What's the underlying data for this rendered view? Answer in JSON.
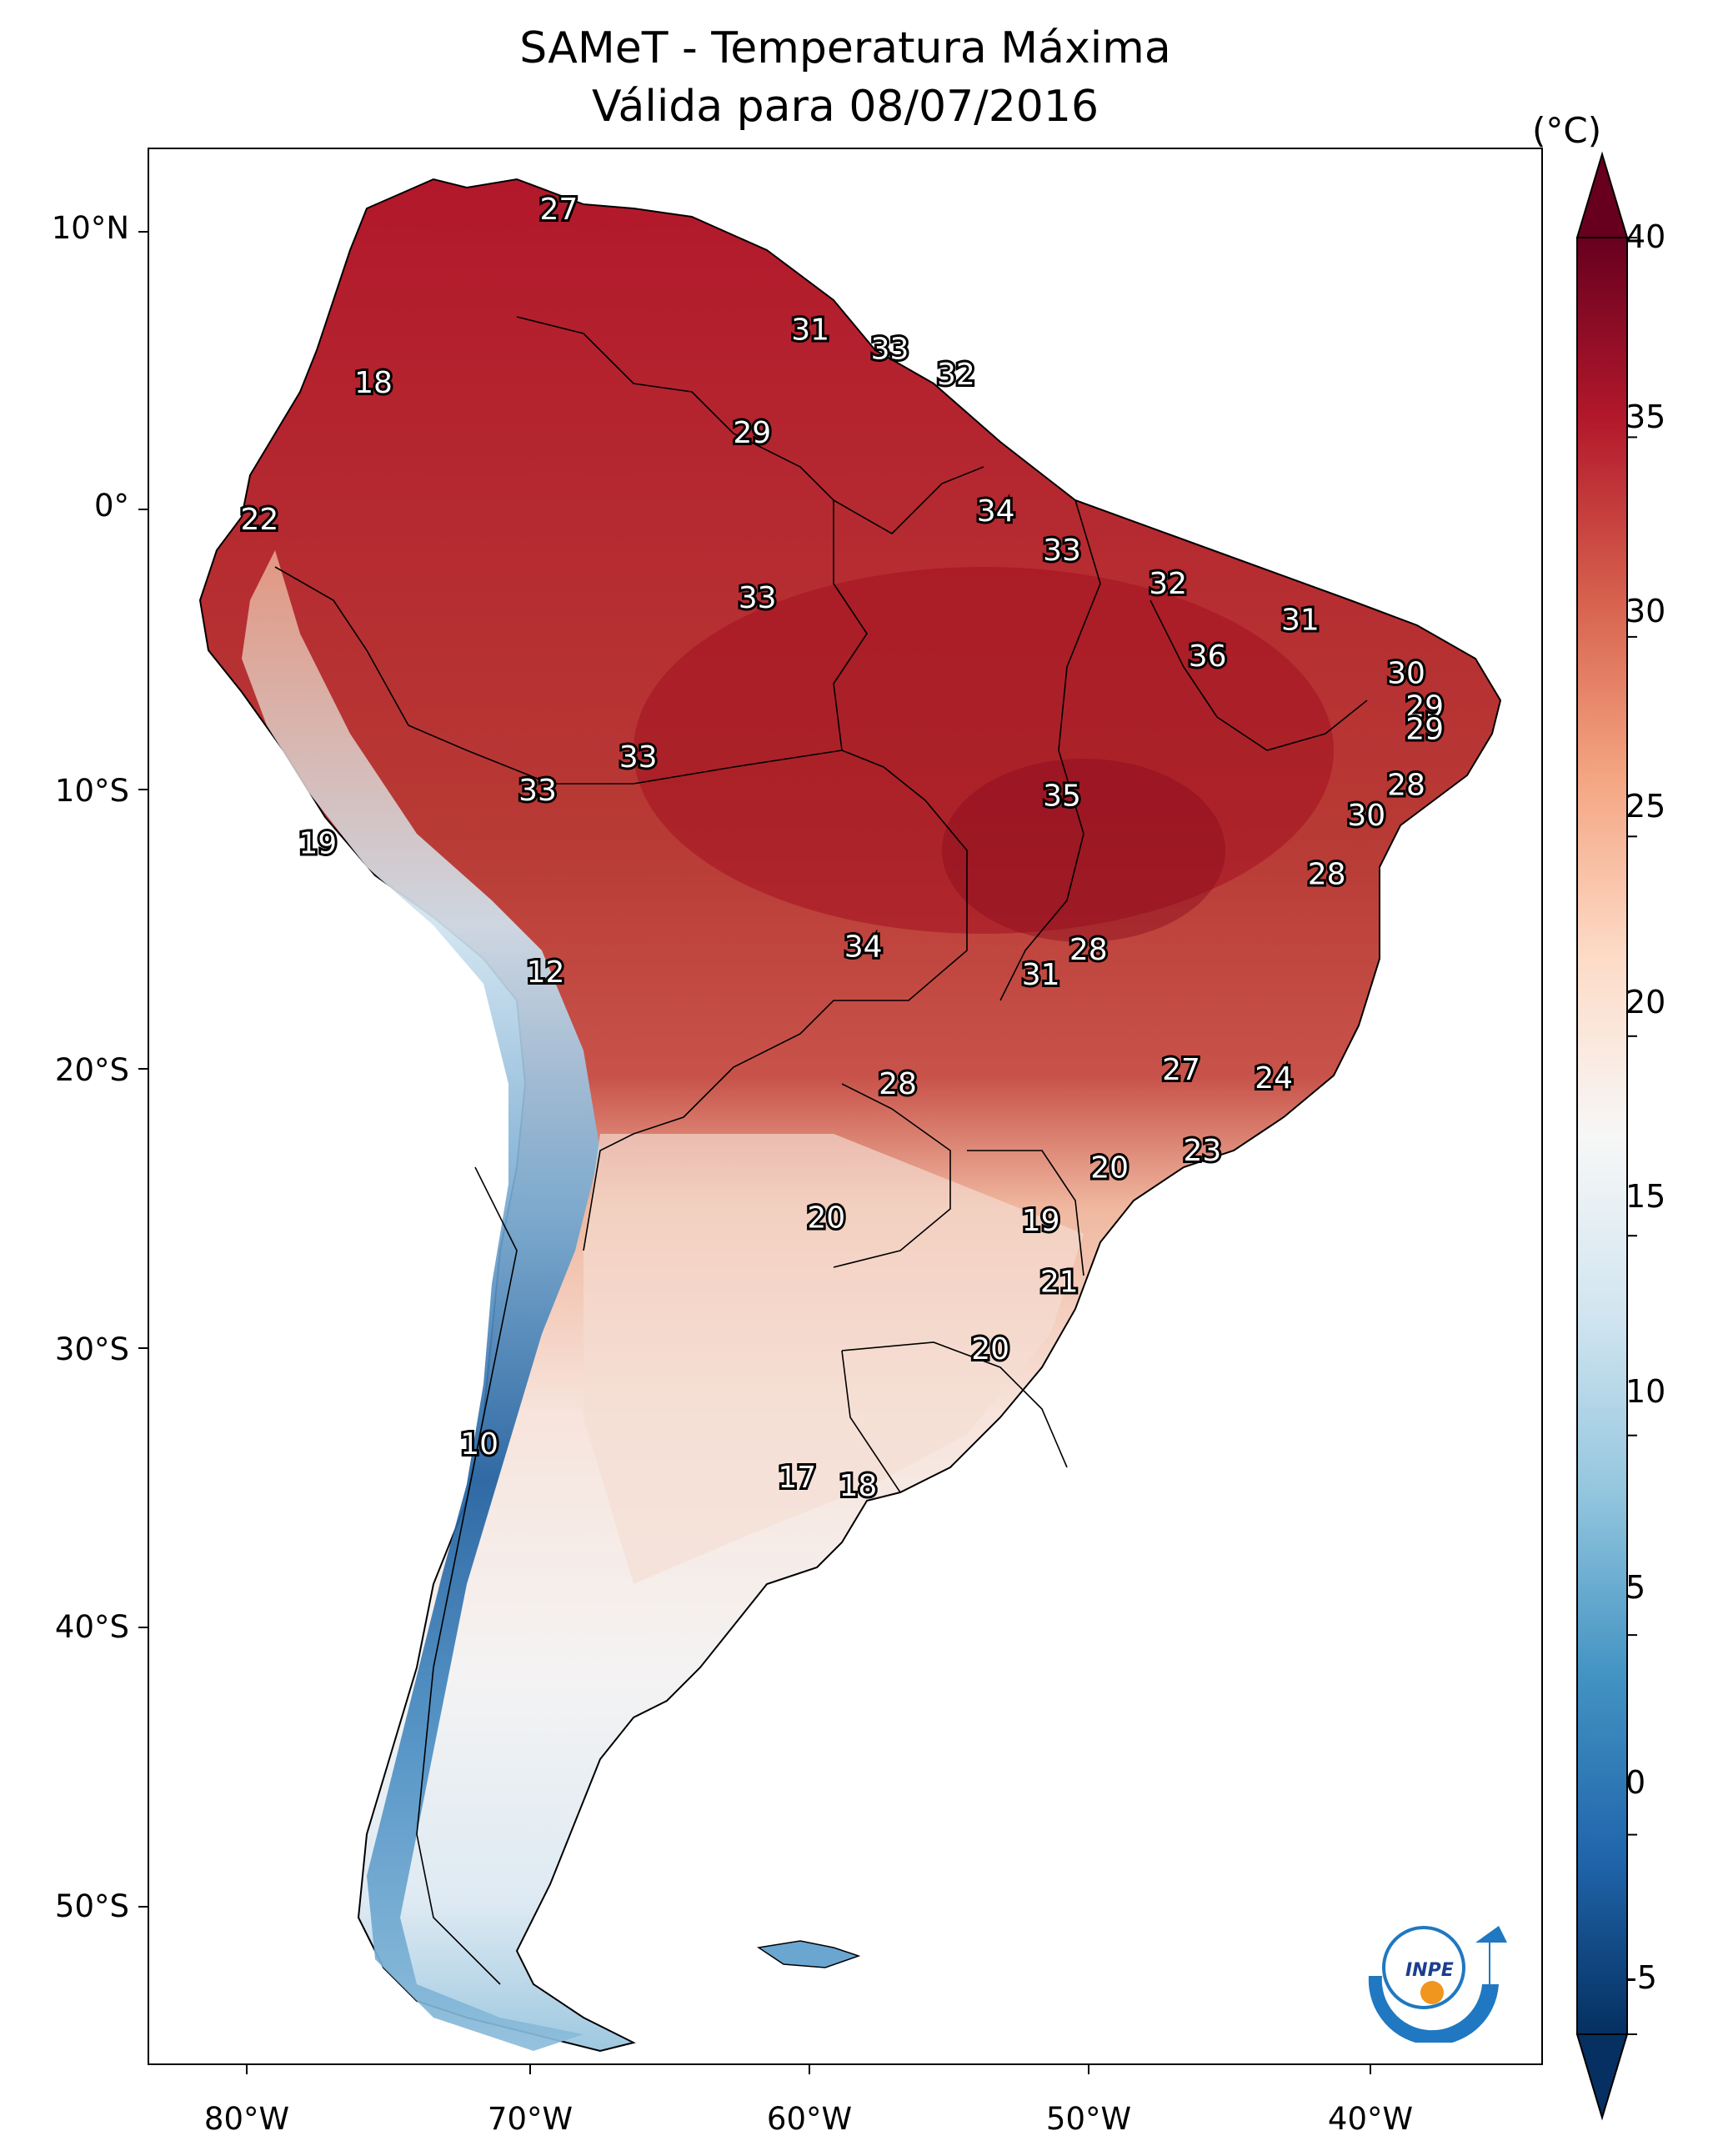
{
  "title": {
    "line1": "SAMeT - Temperatura Máxima",
    "line2": "Válida para 08/07/2016"
  },
  "axes": {
    "lat_ticks": [
      "10°N",
      "0°",
      "10°S",
      "20°S",
      "30°S",
      "40°S",
      "50°S"
    ],
    "lon_ticks": [
      "80°W",
      "70°W",
      "60°W",
      "50°W",
      "40°W"
    ]
  },
  "colorbar": {
    "unit": "(°C)",
    "ticks": [
      "40",
      "35",
      "30",
      "25",
      "20",
      "15",
      "10",
      "5",
      "0",
      "-5"
    ],
    "min": -5,
    "max": 40,
    "extend": "both",
    "colormap": [
      "#053061",
      "#2166ac",
      "#4393c3",
      "#92c5de",
      "#d1e5f0",
      "#f7f7f7",
      "#fddbc7",
      "#f4a582",
      "#d6604d",
      "#b2182b",
      "#67001f"
    ]
  },
  "station_labels": [
    {
      "value": "27",
      "lon": -67.5,
      "lat": 10.8
    },
    {
      "value": "31",
      "lon": -58.0,
      "lat": 6.5
    },
    {
      "value": "33",
      "lon": -55.0,
      "lat": 5.8
    },
    {
      "value": "32",
      "lon": -52.5,
      "lat": 4.9
    },
    {
      "value": "18",
      "lon": -74.5,
      "lat": 4.6
    },
    {
      "value": "29",
      "lon": -60.2,
      "lat": 2.8
    },
    {
      "value": "22",
      "lon": -78.8,
      "lat": -0.3
    },
    {
      "value": "34",
      "lon": -51.0,
      "lat": 0.0
    },
    {
      "value": "33",
      "lon": -48.5,
      "lat": -1.4
    },
    {
      "value": "32",
      "lon": -44.5,
      "lat": -2.6
    },
    {
      "value": "33",
      "lon": -60.0,
      "lat": -3.1
    },
    {
      "value": "31",
      "lon": -39.5,
      "lat": -3.9
    },
    {
      "value": "36",
      "lon": -43.0,
      "lat": -5.2
    },
    {
      "value": "30",
      "lon": -35.5,
      "lat": -5.8
    },
    {
      "value": "29",
      "lon": -34.8,
      "lat": -7.0
    },
    {
      "value": "29",
      "lon": -34.8,
      "lat": -7.8
    },
    {
      "value": "33",
      "lon": -64.5,
      "lat": -8.8
    },
    {
      "value": "28",
      "lon": -35.5,
      "lat": -9.8
    },
    {
      "value": "33",
      "lon": -68.3,
      "lat": -10.0
    },
    {
      "value": "35",
      "lon": -48.5,
      "lat": -10.2
    },
    {
      "value": "30",
      "lon": -37.0,
      "lat": -10.9
    },
    {
      "value": "19",
      "lon": -76.6,
      "lat": -11.9
    },
    {
      "value": "28",
      "lon": -38.5,
      "lat": -13.0
    },
    {
      "value": "34",
      "lon": -56.0,
      "lat": -15.6
    },
    {
      "value": "28",
      "lon": -47.5,
      "lat": -15.7
    },
    {
      "value": "31",
      "lon": -49.3,
      "lat": -16.6
    },
    {
      "value": "12",
      "lon": -68.0,
      "lat": -16.5
    },
    {
      "value": "27",
      "lon": -44.0,
      "lat": -20.0
    },
    {
      "value": "24",
      "lon": -40.5,
      "lat": -20.3
    },
    {
      "value": "28",
      "lon": -54.7,
      "lat": -20.5
    },
    {
      "value": "23",
      "lon": -43.2,
      "lat": -22.9
    },
    {
      "value": "20",
      "lon": -46.7,
      "lat": -23.5
    },
    {
      "value": "20",
      "lon": -57.4,
      "lat": -25.3
    },
    {
      "value": "19",
      "lon": -49.3,
      "lat": -25.4
    },
    {
      "value": "21",
      "lon": -48.6,
      "lat": -27.6
    },
    {
      "value": "20",
      "lon": -51.2,
      "lat": -30.0
    },
    {
      "value": "10",
      "lon": -70.5,
      "lat": -33.4
    },
    {
      "value": "17",
      "lon": -58.5,
      "lat": -34.6
    },
    {
      "value": "18",
      "lon": -56.2,
      "lat": -34.9
    }
  ],
  "logo_text": "INPE"
}
